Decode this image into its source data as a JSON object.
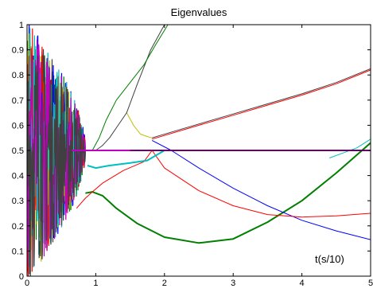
{
  "chart_data": {
    "type": "line",
    "title": "Eigenvalues",
    "xlabel": "",
    "ylabel": "",
    "annotation": "t(s/10)",
    "xlim": [
      0,
      5
    ],
    "ylim": [
      0,
      1
    ],
    "xticks": [
      0,
      1,
      2,
      3,
      4,
      5
    ],
    "yticks": [
      0,
      0.1,
      0.2,
      0.3,
      0.4,
      0.5,
      0.6,
      0.7,
      0.8,
      0.9,
      1
    ],
    "xtick_labels": [
      "0",
      "1",
      "2",
      "3",
      "4",
      "5"
    ],
    "ytick_labels": [
      "0",
      "0.1",
      "0.2",
      "0.3",
      "0.4",
      "0.5",
      "0.6",
      "0.7",
      "0.8",
      "0.9",
      "1"
    ],
    "grid": false,
    "series": [
      {
        "color": "#007f00",
        "width": 2,
        "x": [
          0.85,
          0.95,
          1.1,
          1.3,
          1.6,
          2.0,
          2.5,
          3.0,
          3.5,
          4.0,
          4.5,
          5.0
        ],
        "y": [
          0.33,
          0.335,
          0.32,
          0.27,
          0.21,
          0.155,
          0.132,
          0.148,
          0.215,
          0.3,
          0.41,
          0.53
        ]
      },
      {
        "color": "#0000ff",
        "width": 1,
        "x": [
          1.82,
          2.1,
          2.5,
          3.0,
          3.5,
          4.0,
          4.5,
          5.0
        ],
        "y": [
          0.54,
          0.5,
          0.43,
          0.35,
          0.28,
          0.222,
          0.18,
          0.145
        ]
      },
      {
        "color": "#ff0000",
        "width": 1,
        "x": [
          0.72,
          0.85,
          0.95,
          1.1,
          1.4,
          1.7,
          1.82,
          2.0,
          2.5,
          3.0,
          3.5,
          4.0,
          4.5,
          5.0
        ],
        "y": [
          0.27,
          0.31,
          0.335,
          0.37,
          0.42,
          0.455,
          0.5,
          0.43,
          0.34,
          0.28,
          0.245,
          0.235,
          0.24,
          0.25
        ]
      },
      {
        "color": "#ff0000",
        "width": 1,
        "x": [
          1.82,
          2.5,
          3.0,
          3.5,
          4.0,
          4.5,
          5.0
        ],
        "y": [
          0.545,
          0.6,
          0.64,
          0.68,
          0.72,
          0.765,
          0.82
        ]
      },
      {
        "color": "#00bfbf",
        "width": 2,
        "x": [
          0.88,
          1.0,
          1.2,
          1.5,
          1.75,
          2.0,
          3.0,
          4.0,
          5.0
        ],
        "y": [
          0.44,
          0.43,
          0.44,
          0.45,
          0.46,
          0.5,
          0.5,
          0.5,
          0.5
        ]
      },
      {
        "color": "#00bfbf",
        "width": 1,
        "x": [
          4.4,
          4.6,
          4.8,
          5.0
        ],
        "y": [
          0.47,
          0.49,
          0.51,
          0.545
        ]
      },
      {
        "color": "#bfbf00",
        "width": 1,
        "x": [
          1.45,
          1.55,
          1.65,
          1.75,
          1.82
        ],
        "y": [
          0.65,
          0.6,
          0.565,
          0.555,
          0.55
        ]
      },
      {
        "color": "#404040",
        "width": 1,
        "x": [
          0.9,
          1.0,
          1.1,
          1.2,
          1.3,
          1.45,
          1.6,
          1.8,
          2.0
        ],
        "y": [
          0.5,
          0.5,
          0.52,
          0.55,
          0.59,
          0.65,
          0.76,
          0.9,
          1.0
        ]
      },
      {
        "color": "#007f00",
        "width": 1,
        "x": [
          0.95,
          1.05,
          1.15,
          1.3,
          1.5,
          1.7,
          1.85,
          2.05
        ],
        "y": [
          0.5,
          0.55,
          0.62,
          0.7,
          0.77,
          0.84,
          0.91,
          1.0
        ]
      },
      {
        "color": "#bf00bf",
        "width": 2,
        "x": [
          0.65,
          0.8,
          1.0,
          1.2,
          1.5,
          1.82,
          2.0,
          3.0,
          4.0,
          5.0
        ],
        "y": [
          0.5,
          0.5,
          0.5,
          0.5,
          0.5,
          0.5,
          0.5,
          0.5,
          0.5,
          0.5
        ]
      },
      {
        "color": "#404040",
        "width": 1,
        "x": [
          1.82,
          2.5,
          3.0,
          3.5,
          4.0,
          4.5,
          5.0
        ],
        "y": [
          0.55,
          0.605,
          0.645,
          0.685,
          0.725,
          0.77,
          0.825
        ]
      },
      {
        "color": "#000000",
        "width": 1,
        "x": [
          1.5,
          2.0,
          3.0,
          4.0,
          5.0
        ],
        "y": [
          0.5,
          0.5,
          0.5,
          0.5,
          0.5
        ]
      }
    ],
    "noise_region": {
      "xlim": [
        0,
        0.85
      ],
      "colors": [
        "#007f00",
        "#0000ff",
        "#bfbf00",
        "#ff0000",
        "#00bfbf",
        "#bf00bf",
        "#404040"
      ]
    }
  }
}
